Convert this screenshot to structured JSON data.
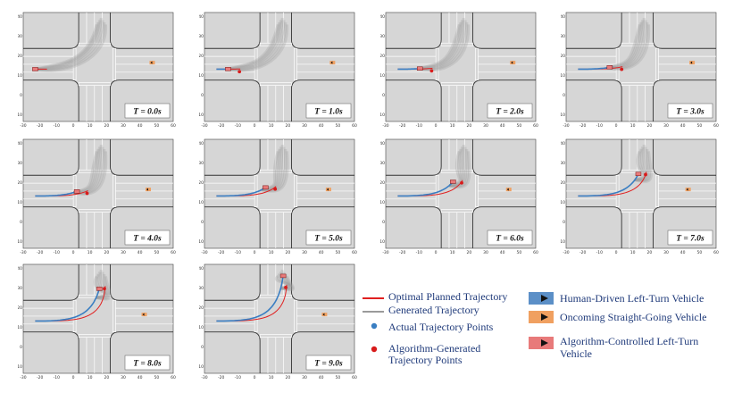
{
  "panels": [
    {
      "label": "T = 0.0s",
      "t": 0
    },
    {
      "label": "T = 1.0s",
      "t": 1
    },
    {
      "label": "T = 2.0s",
      "t": 2
    },
    {
      "label": "T = 3.0s",
      "t": 3
    },
    {
      "label": "T = 4.0s",
      "t": 4
    },
    {
      "label": "T = 5.0s",
      "t": 5
    },
    {
      "label": "T = 6.0s",
      "t": 6
    },
    {
      "label": "T = 7.0s",
      "t": 7
    },
    {
      "label": "T = 8.0s",
      "t": 8
    },
    {
      "label": "T = 9.0s",
      "t": 9
    }
  ],
  "axes": {
    "x_ticks": [
      "-30",
      "-20",
      "-10",
      "0",
      "10",
      "20",
      "30",
      "40",
      "50",
      "60"
    ],
    "y_ticks": [
      "40",
      "30",
      "20",
      "10",
      "0",
      "-10"
    ]
  },
  "legend": {
    "optimal": "Optimal Planned Trajectory",
    "generated": "Generated Trajectory",
    "actual": "Actual Trajectory Points",
    "algo_line1": "Algorithm-Generated",
    "algo_line2": "Trajectory Points",
    "human": "Human-Driven Left-Turn Vehicle",
    "oncoming": "Oncoming Straight-Going Vehicle",
    "algo_ctrl_line1": "Algorithm-Controlled Left-Turn",
    "algo_ctrl_line2": "Vehicle"
  },
  "colors": {
    "background": "#d6d6d6",
    "road_edge": "#333333",
    "optimal": "#e02020",
    "generated": "#9a9a9a",
    "actual": "#3a7ec2",
    "algo_points": "#d81b1b",
    "human_vehicle": "#5b8fc7",
    "oncoming_vehicle": "#f0a060",
    "algo_vehicle": "#e87a7a"
  }
}
